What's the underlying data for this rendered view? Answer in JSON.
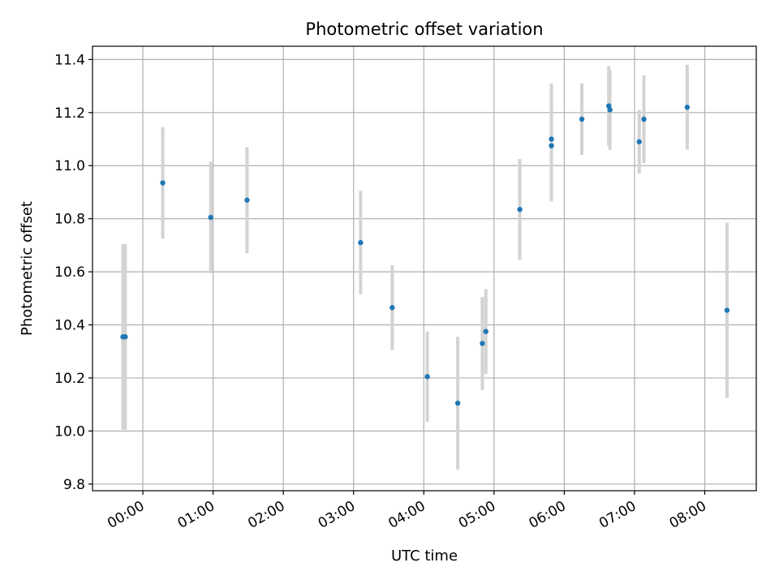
{
  "chart_data": {
    "type": "scatter",
    "title": "Photometric offset variation",
    "xlabel": "UTC time",
    "ylabel": "Photometric offset",
    "x_tick_labels": [
      "00:00",
      "01:00",
      "02:00",
      "03:00",
      "04:00",
      "05:00",
      "06:00",
      "07:00",
      "08:00"
    ],
    "y_tick_labels": [
      "9.8",
      "10.0",
      "10.2",
      "10.4",
      "10.6",
      "10.8",
      "11.0",
      "11.2",
      "11.4"
    ],
    "y_ticks": [
      9.8,
      10.0,
      10.2,
      10.4,
      10.6,
      10.8,
      11.0,
      11.2,
      11.4
    ],
    "xlim": [
      "-00:43",
      "08:44"
    ],
    "ylim": [
      9.775,
      11.45
    ],
    "grid": true,
    "marker_color": "#1f77b4",
    "errorbar_color": "#d3d3d3",
    "points": [
      {
        "x": "-00:17",
        "y": 10.355,
        "yerr": 0.35
      },
      {
        "x": "-00:15",
        "y": 10.355,
        "yerr": 0.35
      },
      {
        "x": "00:17",
        "y": 10.935,
        "yerr": 0.21
      },
      {
        "x": "00:58",
        "y": 10.805,
        "yerr": 0.21
      },
      {
        "x": "01:29",
        "y": 10.87,
        "yerr": 0.2
      },
      {
        "x": "03:06",
        "y": 10.71,
        "yerr": 0.195
      },
      {
        "x": "03:33",
        "y": 10.465,
        "yerr": 0.16
      },
      {
        "x": "04:03",
        "y": 10.205,
        "yerr": 0.17
      },
      {
        "x": "04:29",
        "y": 10.105,
        "yerr": 0.25
      },
      {
        "x": "04:50",
        "y": 10.33,
        "yerr": 0.175
      },
      {
        "x": "04:53",
        "y": 10.375,
        "yerr": 0.16
      },
      {
        "x": "05:22",
        "y": 10.835,
        "yerr": 0.19
      },
      {
        "x": "05:49",
        "y": 11.1,
        "yerr": 0.21
      },
      {
        "x": "05:49",
        "y": 11.075,
        "yerr": 0.21
      },
      {
        "x": "06:15",
        "y": 11.175,
        "yerr": 0.135
      },
      {
        "x": "06:38",
        "y": 11.225,
        "yerr": 0.15
      },
      {
        "x": "06:39",
        "y": 11.21,
        "yerr": 0.15
      },
      {
        "x": "07:04",
        "y": 11.09,
        "yerr": 0.12
      },
      {
        "x": "07:08",
        "y": 11.175,
        "yerr": 0.165
      },
      {
        "x": "07:45",
        "y": 11.22,
        "yerr": 0.16
      },
      {
        "x": "08:19",
        "y": 10.455,
        "yerr": 0.33
      }
    ]
  }
}
